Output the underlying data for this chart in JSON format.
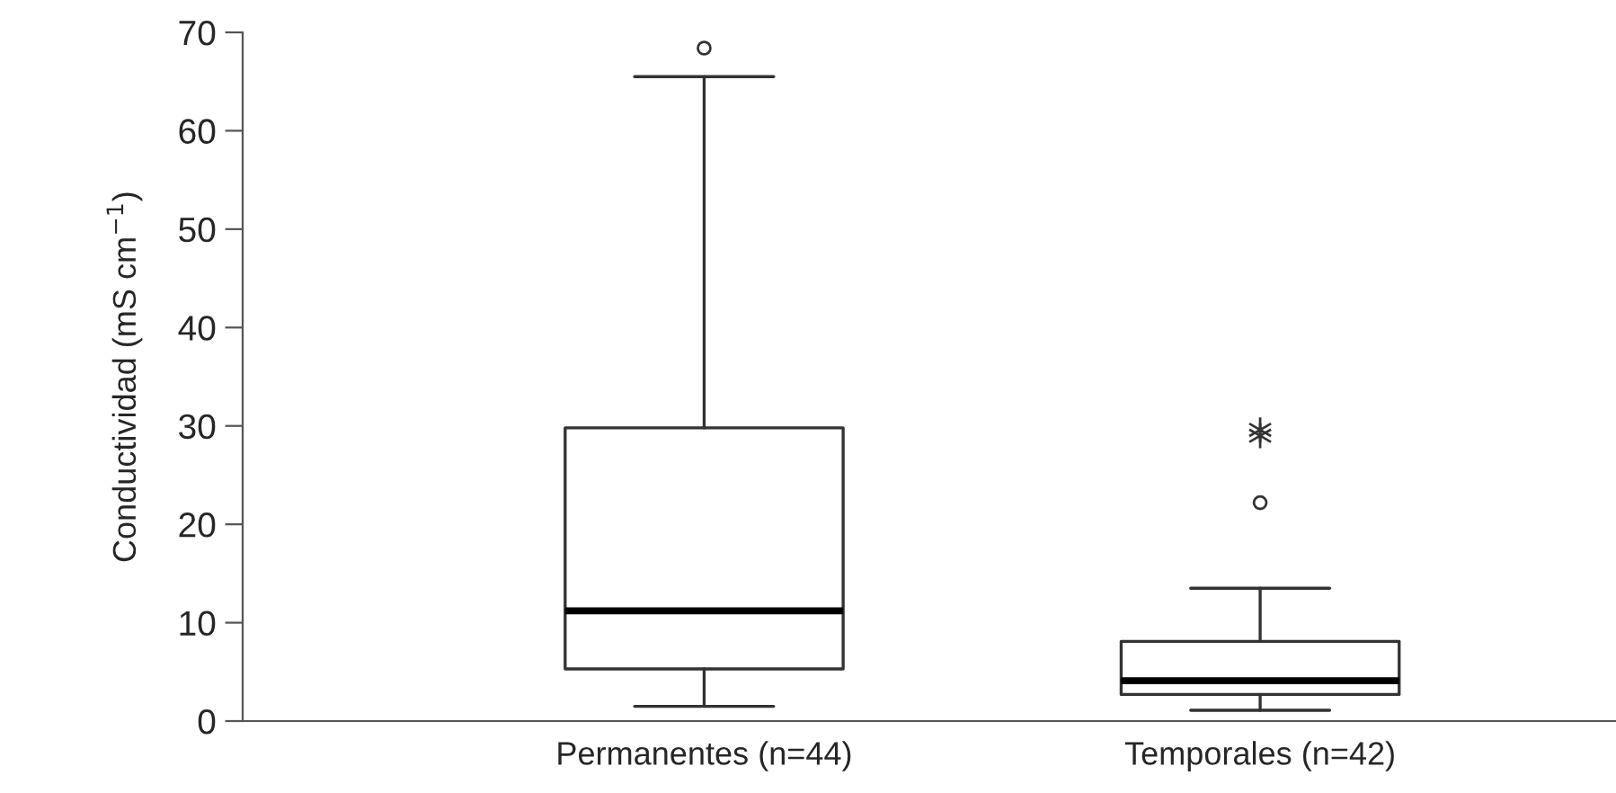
{
  "chart_data": {
    "type": "box",
    "ylabel": "Conductividad (mS cm$^{−1}$)",
    "categories": [
      "Permanentes (n=44)",
      "Temporales (n=42)"
    ],
    "boxes": [
      {
        "low": 1.5,
        "q1": 5.3,
        "median": 11.2,
        "q3": 29.8,
        "high": 65.5,
        "outliers": [
          68.4
        ]
      },
      {
        "low": 1.1,
        "q1": 2.7,
        "median": 4.1,
        "q3": 8.1,
        "high": 13.5,
        "outliers": [
          22.2
        ]
      }
    ],
    "series": [
      {
        "type": "scatter",
        "marker": "cross",
        "color": "#333333",
        "x": [
          "Temporales (n=42)",
          "Temporales (n=42)"
        ],
        "values": [
          29.0,
          29.6
        ]
      }
    ],
    "ylim": [
      0,
      70
    ],
    "yticks": [
      0,
      10,
      20,
      30,
      40,
      50,
      60,
      70
    ],
    "grid": false,
    "legend": false
  }
}
